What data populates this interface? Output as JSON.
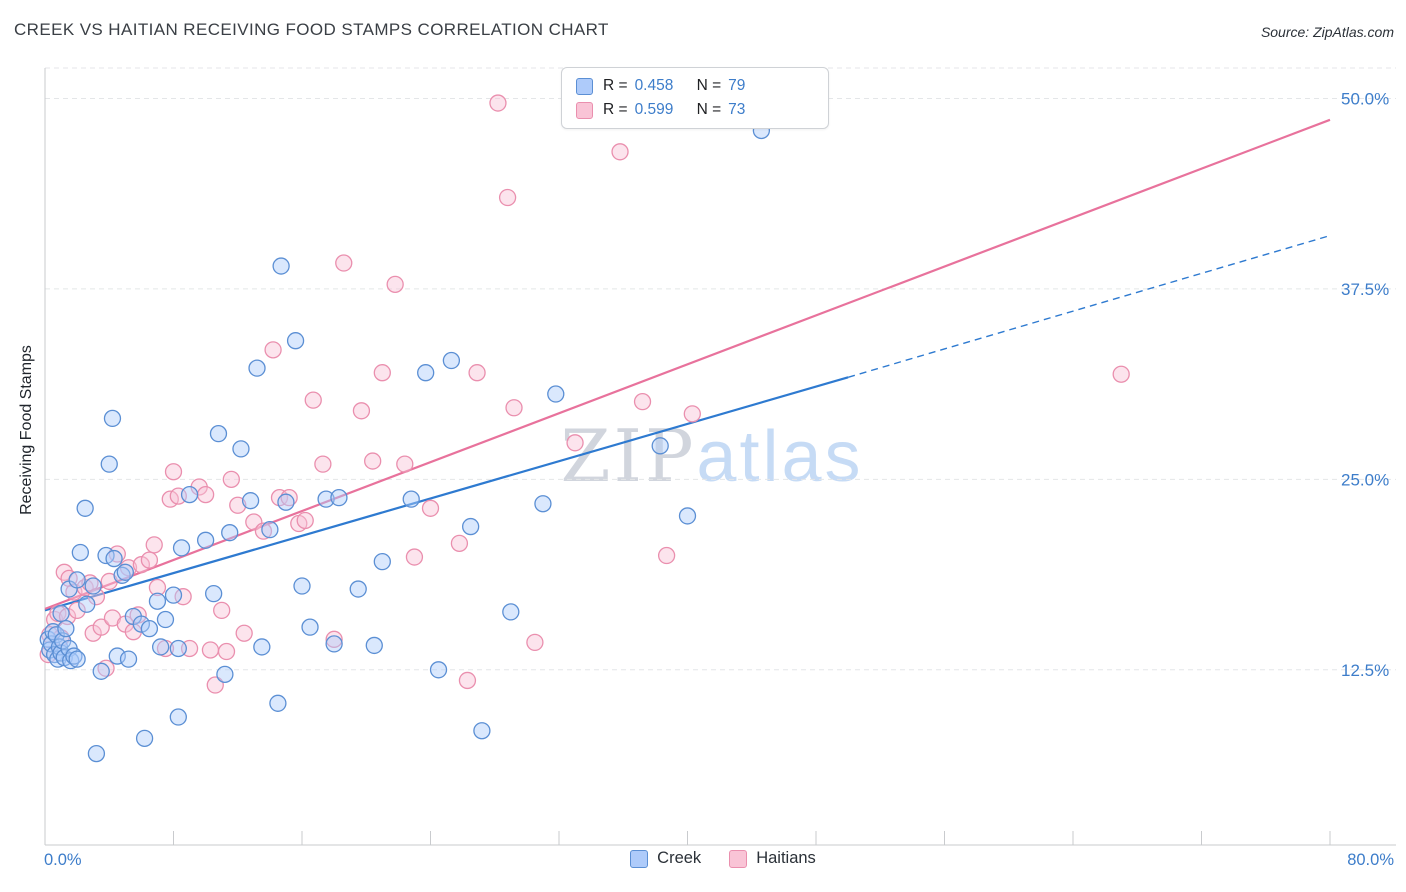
{
  "header": {
    "title": "CREEK VS HAITIAN RECEIVING FOOD STAMPS CORRELATION CHART",
    "source": "Source: ZipAtlas.com"
  },
  "watermark": {
    "part1": "ZIP",
    "part2": "atlas"
  },
  "legend": {
    "r_label": "R =",
    "n_label": "N ="
  },
  "colors": {
    "accent_blue": "#3d7dca",
    "creek_fill": "#aecbfa",
    "creek_stroke": "#5b8fd4",
    "creek_line": "#2e7ad0",
    "haitian_fill": "#f9c4d6",
    "haitian_stroke": "#ea8fae",
    "haitian_line": "#e8729c",
    "gridline": "#e4e6e8"
  },
  "chart_data": {
    "type": "scatter",
    "title": "CREEK VS HAITIAN RECEIVING FOOD STAMPS CORRELATION CHART",
    "xlabel": "",
    "ylabel": "Receiving Food Stamps",
    "grid": true,
    "legend_position": "top-center",
    "x_axis": {
      "domain": [
        0,
        80
      ],
      "ticks": [
        8,
        16,
        24,
        32,
        40,
        48,
        56,
        64,
        72,
        80
      ],
      "left_label": "0.0%",
      "right_label": "80.0%",
      "unit": "%"
    },
    "y_axis": {
      "domain": [
        1,
        52
      ],
      "ticks": [
        {
          "value": 50.0,
          "label": "50.0%"
        },
        {
          "value": 37.5,
          "label": "37.5%"
        },
        {
          "value": 25.0,
          "label": "25.0%"
        },
        {
          "value": 12.5,
          "label": "12.5%"
        }
      ],
      "unit": "%"
    },
    "series": [
      {
        "name": "Creek",
        "R": 0.458,
        "N": 79,
        "r_display": "0.458",
        "n_display": "79",
        "fill": "#aecbfa",
        "stroke": "#5b8fd4",
        "points": [
          [
            0.2,
            14.5
          ],
          [
            0.3,
            13.8
          ],
          [
            0.4,
            14.2
          ],
          [
            0.5,
            15.0
          ],
          [
            0.6,
            13.5
          ],
          [
            0.7,
            14.8
          ],
          [
            0.8,
            13.2
          ],
          [
            0.9,
            14.0
          ],
          [
            1.0,
            13.6
          ],
          [
            1.1,
            14.4
          ],
          [
            1.2,
            13.3
          ],
          [
            1.3,
            15.2
          ],
          [
            1.5,
            13.9
          ],
          [
            1.6,
            13.1
          ],
          [
            1.8,
            13.4
          ],
          [
            2.0,
            13.2
          ],
          [
            1.0,
            16.2
          ],
          [
            1.5,
            17.8
          ],
          [
            2.0,
            18.4
          ],
          [
            2.2,
            20.2
          ],
          [
            2.5,
            23.1
          ],
          [
            2.6,
            16.8
          ],
          [
            3.0,
            18.0
          ],
          [
            3.2,
            7.0
          ],
          [
            3.5,
            12.4
          ],
          [
            3.8,
            20.0
          ],
          [
            4.0,
            26.0
          ],
          [
            4.2,
            29.0
          ],
          [
            4.3,
            19.8
          ],
          [
            4.5,
            13.4
          ],
          [
            4.8,
            18.7
          ],
          [
            5.0,
            18.9
          ],
          [
            5.2,
            13.2
          ],
          [
            5.5,
            16.0
          ],
          [
            40.0,
            22.6
          ],
          [
            6.0,
            15.5
          ],
          [
            6.2,
            8.0
          ],
          [
            6.5,
            15.2
          ],
          [
            7.0,
            17.0
          ],
          [
            7.2,
            14.0
          ],
          [
            7.5,
            15.8
          ],
          [
            8.0,
            17.4
          ],
          [
            8.3,
            13.9
          ],
          [
            8.5,
            20.5
          ],
          [
            9.0,
            24.0
          ],
          [
            8.3,
            9.4
          ],
          [
            10.0,
            21.0
          ],
          [
            10.5,
            17.5
          ],
          [
            10.8,
            28.0
          ],
          [
            11.2,
            12.2
          ],
          [
            11.5,
            21.5
          ],
          [
            12.2,
            27.0
          ],
          [
            12.8,
            23.6
          ],
          [
            13.2,
            32.3
          ],
          [
            13.5,
            14.0
          ],
          [
            14.0,
            21.7
          ],
          [
            14.5,
            10.3
          ],
          [
            14.7,
            39.0
          ],
          [
            15.0,
            23.5
          ],
          [
            15.6,
            34.1
          ],
          [
            16.0,
            18.0
          ],
          [
            16.5,
            15.3
          ],
          [
            17.5,
            23.7
          ],
          [
            18.0,
            14.2
          ],
          [
            18.3,
            23.8
          ],
          [
            19.5,
            17.8
          ],
          [
            20.5,
            14.1
          ],
          [
            21.0,
            19.6
          ],
          [
            22.8,
            23.7
          ],
          [
            23.7,
            32.0
          ],
          [
            24.5,
            12.5
          ],
          [
            25.3,
            32.8
          ],
          [
            26.5,
            21.9
          ],
          [
            27.2,
            8.5
          ],
          [
            29.0,
            16.3
          ],
          [
            31.0,
            23.4
          ],
          [
            31.8,
            30.6
          ],
          [
            38.3,
            27.2
          ],
          [
            44.6,
            47.9
          ]
        ]
      },
      {
        "name": "Haitians",
        "R": 0.599,
        "N": 73,
        "r_display": "0.599",
        "n_display": "73",
        "fill": "#f9c4d6",
        "stroke": "#ea8fae",
        "points": [
          [
            0.2,
            13.5
          ],
          [
            0.3,
            14.8
          ],
          [
            0.6,
            15.8
          ],
          [
            0.8,
            16.2
          ],
          [
            1.0,
            14.6
          ],
          [
            1.2,
            18.9
          ],
          [
            1.4,
            16.0
          ],
          [
            1.5,
            18.5
          ],
          [
            1.8,
            17.6
          ],
          [
            2.0,
            16.4
          ],
          [
            2.5,
            17.9
          ],
          [
            2.8,
            18.2
          ],
          [
            3.0,
            14.9
          ],
          [
            3.2,
            17.3
          ],
          [
            3.5,
            15.3
          ],
          [
            3.8,
            12.6
          ],
          [
            4.0,
            18.3
          ],
          [
            4.2,
            15.9
          ],
          [
            4.5,
            20.1
          ],
          [
            5.0,
            15.5
          ],
          [
            5.2,
            19.2
          ],
          [
            5.5,
            15.0
          ],
          [
            5.8,
            16.1
          ],
          [
            6.0,
            19.4
          ],
          [
            6.5,
            19.7
          ],
          [
            6.8,
            20.7
          ],
          [
            7.0,
            17.9
          ],
          [
            7.5,
            13.9
          ],
          [
            7.8,
            23.7
          ],
          [
            8.0,
            25.5
          ],
          [
            8.3,
            23.9
          ],
          [
            8.6,
            17.3
          ],
          [
            9.0,
            13.9
          ],
          [
            9.6,
            24.5
          ],
          [
            10.0,
            24.0
          ],
          [
            10.3,
            13.8
          ],
          [
            10.6,
            11.5
          ],
          [
            11.0,
            16.4
          ],
          [
            11.3,
            13.7
          ],
          [
            11.6,
            25.0
          ],
          [
            12.0,
            23.3
          ],
          [
            12.4,
            14.9
          ],
          [
            13.0,
            22.2
          ],
          [
            13.6,
            21.6
          ],
          [
            14.2,
            33.5
          ],
          [
            14.6,
            23.8
          ],
          [
            15.2,
            23.8
          ],
          [
            15.8,
            22.1
          ],
          [
            16.2,
            22.3
          ],
          [
            16.7,
            30.2
          ],
          [
            17.3,
            26.0
          ],
          [
            18.0,
            14.5
          ],
          [
            18.6,
            39.2
          ],
          [
            19.7,
            29.5
          ],
          [
            20.4,
            26.2
          ],
          [
            21.0,
            32.0
          ],
          [
            21.8,
            37.8
          ],
          [
            22.4,
            26.0
          ],
          [
            23.0,
            19.9
          ],
          [
            24.0,
            23.1
          ],
          [
            25.8,
            20.8
          ],
          [
            26.9,
            32.0
          ],
          [
            28.2,
            49.7
          ],
          [
            28.8,
            43.5
          ],
          [
            29.2,
            29.7
          ],
          [
            30.5,
            14.3
          ],
          [
            33.0,
            27.4
          ],
          [
            35.8,
            46.5
          ],
          [
            37.2,
            30.1
          ],
          [
            26.3,
            11.8
          ],
          [
            38.7,
            20.0
          ],
          [
            40.3,
            29.3
          ],
          [
            67.0,
            31.9
          ]
        ]
      }
    ],
    "trend_lines": [
      {
        "series": "Creek",
        "color": "#2e7ad0",
        "start": {
          "x": 0,
          "y": 16.4
        },
        "solid_end": {
          "x": 50,
          "y": 31.7
        },
        "dashed_end": {
          "x": 80,
          "y": 41.0
        }
      },
      {
        "series": "Haitians",
        "color": "#e8729c",
        "start": {
          "x": 0,
          "y": 16.5
        },
        "solid_end": {
          "x": 80,
          "y": 48.6
        }
      }
    ]
  }
}
